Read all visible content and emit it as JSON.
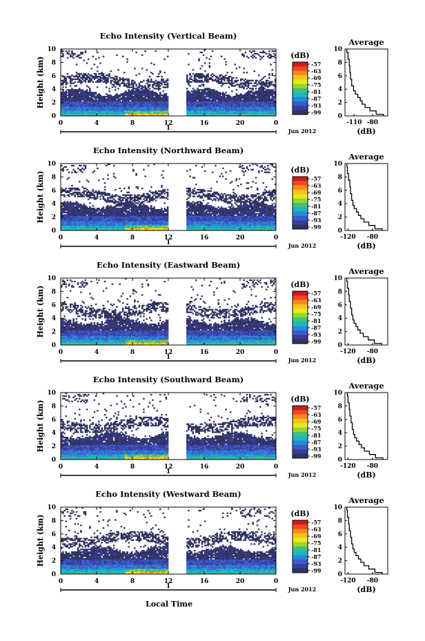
{
  "figure": {
    "xlabel": "Local Time",
    "date_label": "Jun 2012",
    "day_label": "1",
    "colorbar_unit": "(dB)",
    "colorbar_ticks": [
      "-57",
      "-63",
      "-69",
      "-75",
      "-81",
      "-87",
      "-93",
      "-99"
    ],
    "colorbar_colors": [
      "#d0191f",
      "#ee4a1d",
      "#f88a1c",
      "#f5c21b",
      "#e8ea17",
      "#9ad42a",
      "#41c07c",
      "#19b7c6",
      "#2a8ad6",
      "#3a5cc8",
      "#3a3d9c",
      "#313461"
    ],
    "no_data_color": "#ffffff"
  },
  "chart_data": [
    {
      "type": "heatmap",
      "title": "Echo Intensity (Vertical Beam)",
      "ylabel": "Height (km)",
      "xlim": [
        0,
        24
      ],
      "ylim": [
        0,
        10
      ],
      "xticks": [
        "0",
        "4",
        "8",
        "12",
        "16",
        "20",
        "0"
      ],
      "yticks": [
        "0",
        "2",
        "4",
        "6",
        "8",
        "10"
      ],
      "data_gap_hours": [
        12,
        14
      ],
      "boundary_layer_top_km": 3.6,
      "profile": {
        "title": "Average",
        "xlabel": "(dB)",
        "xlim": [
          -125,
          -55
        ],
        "xticks": [
          "-110",
          "-80"
        ],
        "height_km": [
          0,
          0.5,
          1,
          1.5,
          2,
          2.5,
          3,
          3.5,
          4,
          5,
          6,
          7,
          8,
          9,
          10
        ],
        "intensity_db": [
          -62,
          -74,
          -84,
          -92,
          -97,
          -100,
          -104,
          -108,
          -111,
          -114,
          -116,
          -117,
          -118,
          -120,
          -122
        ]
      }
    },
    {
      "type": "heatmap",
      "title": "Echo Intensity (Northward Beam)",
      "ylabel": "Height (km)",
      "xlim": [
        0,
        24
      ],
      "ylim": [
        0,
        10
      ],
      "xticks": [
        "0",
        "4",
        "8",
        "12",
        "16",
        "20",
        "0"
      ],
      "yticks": [
        "0",
        "2",
        "4",
        "6",
        "8",
        "10"
      ],
      "data_gap_hours": [
        12,
        14
      ],
      "boundary_layer_top_km": 3.8,
      "profile": {
        "title": "Average",
        "xlabel": "(dB)",
        "xlim": [
          -125,
          -55
        ],
        "xticks": [
          "-120",
          "-80"
        ],
        "height_km": [
          0,
          0.5,
          1,
          1.5,
          2,
          2.5,
          3,
          3.5,
          4,
          5,
          6,
          7,
          8,
          9,
          10
        ],
        "intensity_db": [
          -64,
          -76,
          -86,
          -94,
          -99,
          -103,
          -106,
          -110,
          -112,
          -114,
          -116,
          -117,
          -119,
          -121,
          -122
        ]
      }
    },
    {
      "type": "heatmap",
      "title": "Echo Intensity (Eastward Beam)",
      "ylabel": "Height (km)",
      "xlim": [
        0,
        24
      ],
      "ylim": [
        0,
        10
      ],
      "xticks": [
        "0",
        "4",
        "8",
        "12",
        "16",
        "20",
        "0"
      ],
      "yticks": [
        "0",
        "2",
        "4",
        "6",
        "8",
        "10"
      ],
      "data_gap_hours": [
        12,
        14
      ],
      "boundary_layer_top_km": 3.6,
      "profile": {
        "title": "Average",
        "xlabel": "(dB)",
        "xlim": [
          -125,
          -55
        ],
        "xticks": [
          "-120",
          "-80"
        ],
        "height_km": [
          0,
          0.5,
          1,
          1.5,
          2,
          2.5,
          3,
          3.5,
          4,
          5,
          6,
          7,
          8,
          9,
          10
        ],
        "intensity_db": [
          -65,
          -77,
          -87,
          -95,
          -100,
          -104,
          -107,
          -110,
          -112,
          -114,
          -116,
          -118,
          -119,
          -121,
          -122
        ]
      }
    },
    {
      "type": "heatmap",
      "title": "Echo Intensity (Southward Beam)",
      "ylabel": "Height (km)",
      "xlim": [
        0,
        24
      ],
      "ylim": [
        0,
        10
      ],
      "xticks": [
        "0",
        "4",
        "8",
        "12",
        "16",
        "20",
        "0"
      ],
      "yticks": [
        "0",
        "2",
        "4",
        "6",
        "8",
        "10"
      ],
      "data_gap_hours": [
        12,
        14
      ],
      "boundary_layer_top_km": 3.7,
      "profile": {
        "title": "Average",
        "xlabel": "(dB)",
        "xlim": [
          -125,
          -55
        ],
        "xticks": [
          "-120",
          "-80"
        ],
        "height_km": [
          0,
          0.5,
          1,
          1.5,
          2,
          2.5,
          3,
          3.5,
          4,
          5,
          6,
          7,
          8,
          9,
          10
        ],
        "intensity_db": [
          -63,
          -75,
          -85,
          -93,
          -98,
          -102,
          -106,
          -109,
          -111,
          -113,
          -115,
          -117,
          -118,
          -120,
          -121
        ]
      }
    },
    {
      "type": "heatmap",
      "title": "Echo Intensity (Westward Beam)",
      "ylabel": "Height (km)",
      "xlim": [
        0,
        24
      ],
      "ylim": [
        0,
        10
      ],
      "xticks": [
        "0",
        "4",
        "8",
        "12",
        "16",
        "20",
        "0"
      ],
      "yticks": [
        "0",
        "2",
        "4",
        "6",
        "8",
        "10"
      ],
      "data_gap_hours": [
        12,
        14
      ],
      "boundary_layer_top_km": 3.7,
      "profile": {
        "title": "Average",
        "xlabel": "(dB)",
        "xlim": [
          -125,
          -55
        ],
        "xticks": [
          "-120",
          "-80"
        ],
        "height_km": [
          0,
          0.5,
          1,
          1.5,
          2,
          2.5,
          3,
          3.5,
          4,
          5,
          6,
          7,
          8,
          9,
          10
        ],
        "intensity_db": [
          -64,
          -76,
          -86,
          -94,
          -99,
          -103,
          -107,
          -110,
          -112,
          -114,
          -116,
          -118,
          -119,
          -121,
          -122
        ]
      }
    }
  ]
}
